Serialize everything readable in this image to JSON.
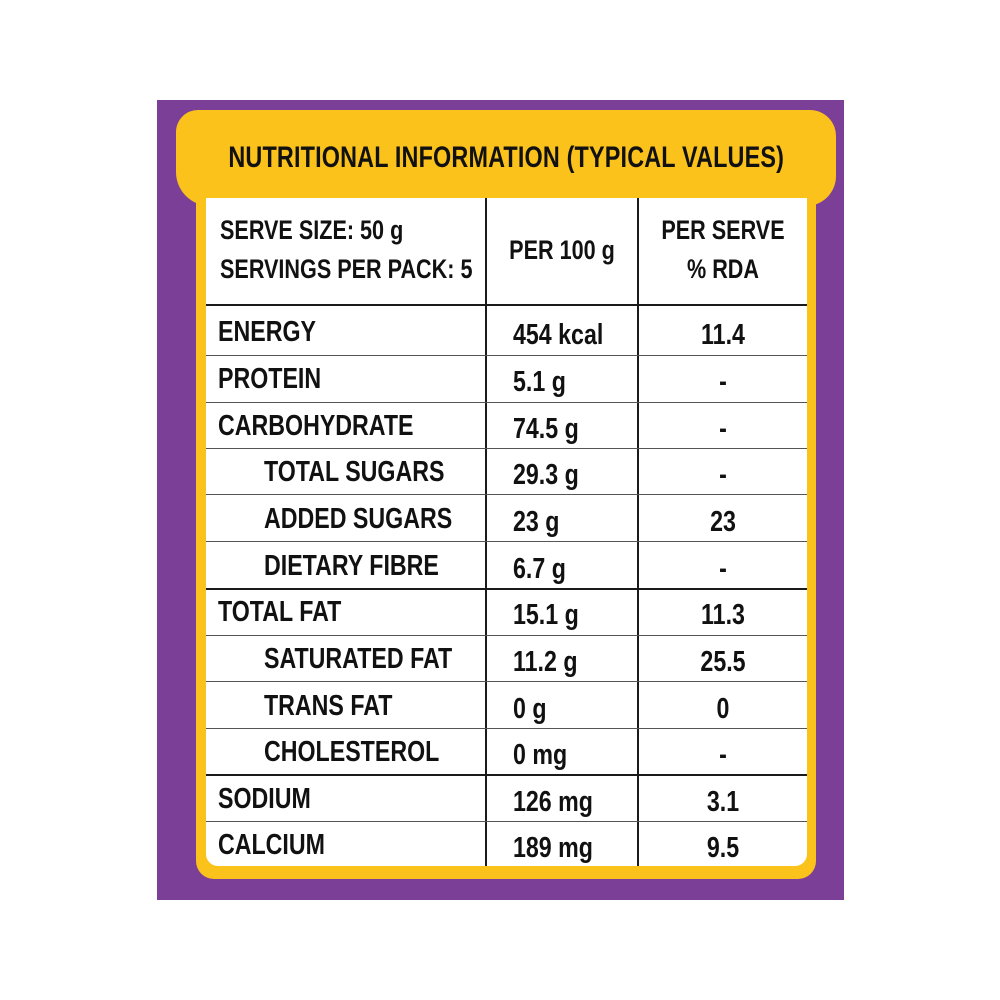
{
  "colors": {
    "purple": "#7b3f98",
    "yellow": "#fbc21b",
    "text": "#111111"
  },
  "title": "NUTRITIONAL INFORMATION (TYPICAL VALUES)",
  "header": {
    "serve_size": "SERVE SIZE: 50 g",
    "servings_per_pack": "SERVINGS PER PACK: 5",
    "col_per100": "PER 100 g",
    "col_perserve_line1": "PER SERVE",
    "col_perserve_line2": "% RDA"
  },
  "rows": [
    {
      "name": "ENERGY",
      "per100": "454 kcal",
      "rda": "11.4"
    },
    {
      "name": "PROTEIN",
      "per100": "5.1 g",
      "rda": "-"
    },
    {
      "name": "CARBOHYDRATE",
      "per100": "74.5 g",
      "rda": "-"
    },
    {
      "name": "TOTAL SUGARS",
      "per100": "29.3 g",
      "rda": "-"
    },
    {
      "name": "ADDED SUGARS",
      "per100": "23 g",
      "rda": "23"
    },
    {
      "name": "DIETARY FIBRE",
      "per100": "6.7 g",
      "rda": "-"
    },
    {
      "name": "TOTAL FAT",
      "per100": "15.1 g",
      "rda": "11.3"
    },
    {
      "name": "SATURATED FAT",
      "per100": "11.2 g",
      "rda": "25.5"
    },
    {
      "name": "TRANS FAT",
      "per100": "0 g",
      "rda": "0"
    },
    {
      "name": "CHOLESTEROL",
      "per100": "0 mg",
      "rda": "-"
    },
    {
      "name": "SODIUM",
      "per100": "126 mg",
      "rda": "3.1"
    },
    {
      "name": "CALCIUM",
      "per100": "189 mg",
      "rda": "9.5"
    }
  ]
}
